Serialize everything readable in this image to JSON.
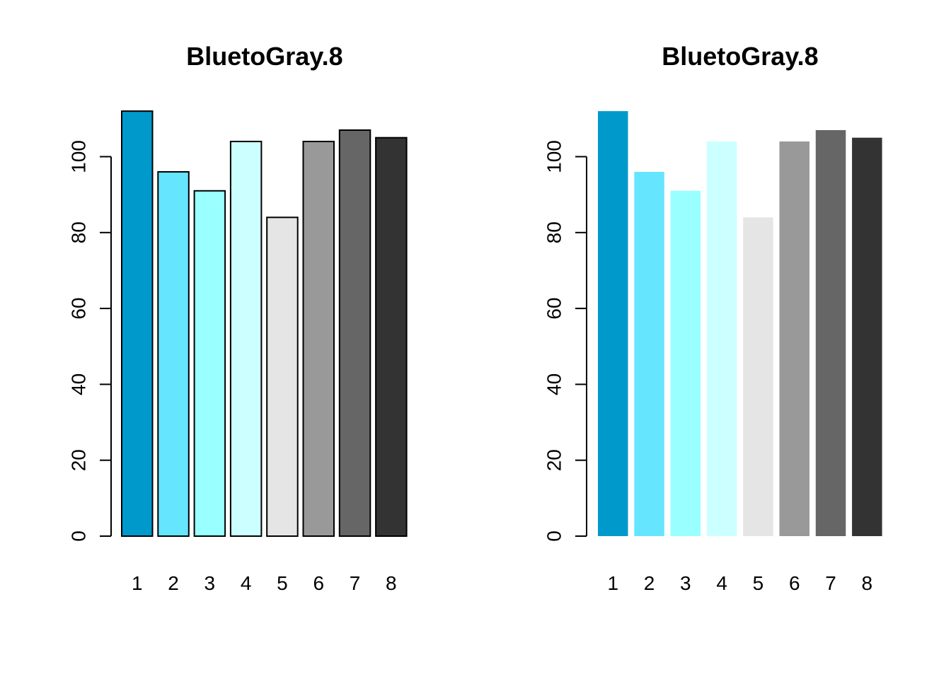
{
  "chart_data": [
    {
      "type": "bar",
      "title": "BluetoGray.8",
      "categories": [
        "1",
        "2",
        "3",
        "4",
        "5",
        "6",
        "7",
        "8"
      ],
      "values": [
        112,
        96,
        91,
        104,
        84,
        104,
        107,
        105
      ],
      "colors": [
        "#0099CC",
        "#66E5FF",
        "#99FFFF",
        "#CCFFFF",
        "#E5E5E5",
        "#999999",
        "#666666",
        "#333333"
      ],
      "bar_border": true,
      "yticks": [
        0,
        20,
        40,
        60,
        80,
        100
      ],
      "ylim": [
        0,
        112
      ],
      "grid": false,
      "legend": "none"
    },
    {
      "type": "bar",
      "title": "BluetoGray.8",
      "categories": [
        "1",
        "2",
        "3",
        "4",
        "5",
        "6",
        "7",
        "8"
      ],
      "values": [
        112,
        96,
        91,
        104,
        84,
        104,
        107,
        105
      ],
      "colors": [
        "#0099CC",
        "#66E5FF",
        "#99FFFF",
        "#CCFFFF",
        "#E5E5E5",
        "#999999",
        "#666666",
        "#333333"
      ],
      "bar_border": false,
      "yticks": [
        0,
        20,
        40,
        60,
        80,
        100
      ],
      "ylim": [
        0,
        112
      ],
      "grid": false,
      "legend": "none"
    }
  ]
}
